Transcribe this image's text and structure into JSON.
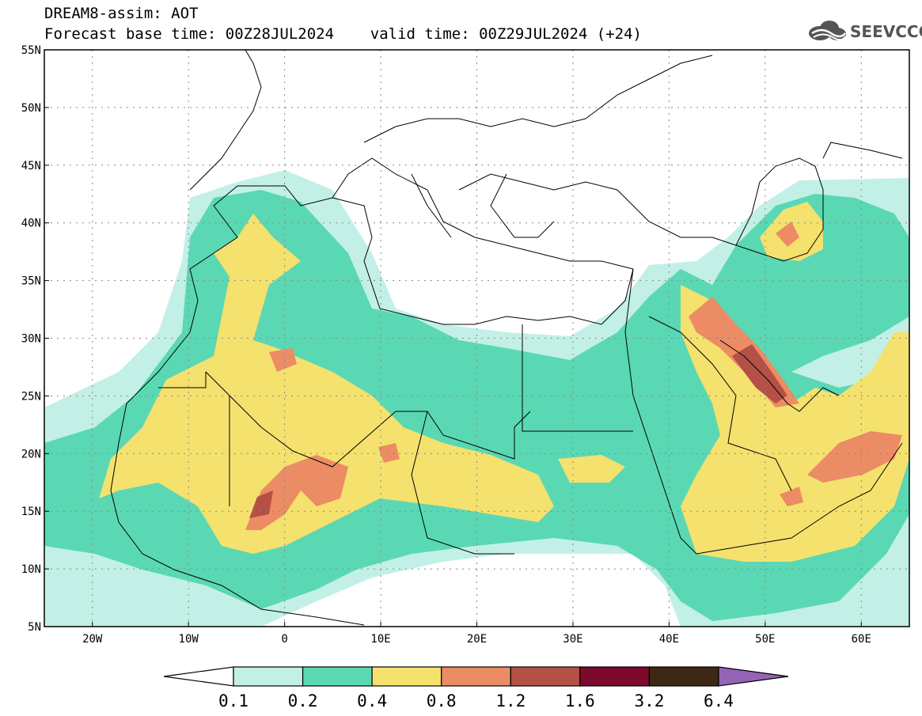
{
  "title": {
    "line1": "DREAM8-assim: AOT",
    "line2": "Forecast base time: 00Z28JUL2024    valid time: 00Z29JUL2024 (+24)"
  },
  "logo": {
    "text": "SEEVCCC",
    "icon": "cloud-icon"
  },
  "map": {
    "lon_range": [
      -25,
      65
    ],
    "lat_range": [
      5,
      55
    ],
    "lat_ticks": [
      {
        "value": 55,
        "label": "55N"
      },
      {
        "value": 50,
        "label": "50N"
      },
      {
        "value": 45,
        "label": "45N"
      },
      {
        "value": 40,
        "label": "40N"
      },
      {
        "value": 35,
        "label": "35N"
      },
      {
        "value": 30,
        "label": "30N"
      },
      {
        "value": 25,
        "label": "25N"
      },
      {
        "value": 20,
        "label": "20N"
      },
      {
        "value": 15,
        "label": "15N"
      },
      {
        "value": 10,
        "label": "10N"
      },
      {
        "value": 5,
        "label": "5N"
      }
    ],
    "lon_ticks": [
      {
        "value": -20,
        "label": "20W"
      },
      {
        "value": -10,
        "label": "10W"
      },
      {
        "value": 0,
        "label": "0"
      },
      {
        "value": 10,
        "label": "10E"
      },
      {
        "value": 20,
        "label": "20E"
      },
      {
        "value": 30,
        "label": "30E"
      },
      {
        "value": 40,
        "label": "40E"
      },
      {
        "value": 50,
        "label": "50E"
      },
      {
        "value": 60,
        "label": "60E"
      }
    ],
    "grid": "dotted"
  },
  "colorbar": {
    "labels": [
      "0.1",
      "0.2",
      "0.4",
      "0.8",
      "1.2",
      "1.6",
      "3.2",
      "6.4"
    ],
    "colors": [
      "#ffffff",
      "#c2f0e6",
      "#5ad8b4",
      "#f5e16e",
      "#eb8c64",
      "#b45046",
      "#7d0a2a",
      "#3c2814",
      "#9664b4"
    ]
  }
}
